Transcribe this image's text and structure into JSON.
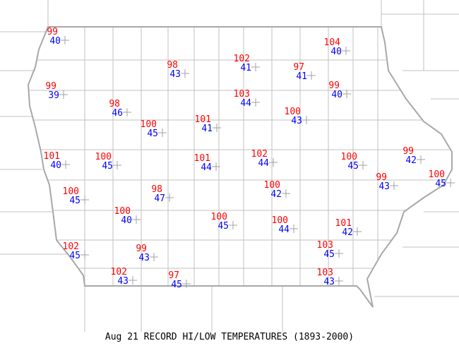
{
  "caption": "Aug 21 RECORD HI/LOW TEMPERATURES (1893-2000)",
  "colors": {
    "hi": "#ff0000",
    "lo": "#0000ff",
    "county_lines": "#c0c0c0",
    "state_border": "#a8a8a8"
  },
  "marker_icon": "plus-station-marker",
  "stations": [
    {
      "hi": "99",
      "lo": "40"
    },
    {
      "hi": "98",
      "lo": "43"
    },
    {
      "hi": "102",
      "lo": "41"
    },
    {
      "hi": "97",
      "lo": "41"
    },
    {
      "hi": "104",
      "lo": "40"
    },
    {
      "hi": "99",
      "lo": "39"
    },
    {
      "hi": "98",
      "lo": "46"
    },
    {
      "hi": "103",
      "lo": "44"
    },
    {
      "hi": "99",
      "lo": "40"
    },
    {
      "hi": "100",
      "lo": "45"
    },
    {
      "hi": "101",
      "lo": "41"
    },
    {
      "hi": "100",
      "lo": "43"
    },
    {
      "hi": "101",
      "lo": "40"
    },
    {
      "hi": "100",
      "lo": "45"
    },
    {
      "hi": "101",
      "lo": "44"
    },
    {
      "hi": "102",
      "lo": "44"
    },
    {
      "hi": "100",
      "lo": "45"
    },
    {
      "hi": "99",
      "lo": "42"
    },
    {
      "hi": "99",
      "lo": "43"
    },
    {
      "hi": "100",
      "lo": "45"
    },
    {
      "hi": "100",
      "lo": "45"
    },
    {
      "hi": "98",
      "lo": "47"
    },
    {
      "hi": "100",
      "lo": "42"
    },
    {
      "hi": "100",
      "lo": "40"
    },
    {
      "hi": "100",
      "lo": "45"
    },
    {
      "hi": "100",
      "lo": "44"
    },
    {
      "hi": "101",
      "lo": "42"
    },
    {
      "hi": "102",
      "lo": "45"
    },
    {
      "hi": "99",
      "lo": "43"
    },
    {
      "hi": "103",
      "lo": "45"
    },
    {
      "hi": "102",
      "lo": "43"
    },
    {
      "hi": "97",
      "lo": "45"
    },
    {
      "hi": "103",
      "lo": "43"
    }
  ]
}
